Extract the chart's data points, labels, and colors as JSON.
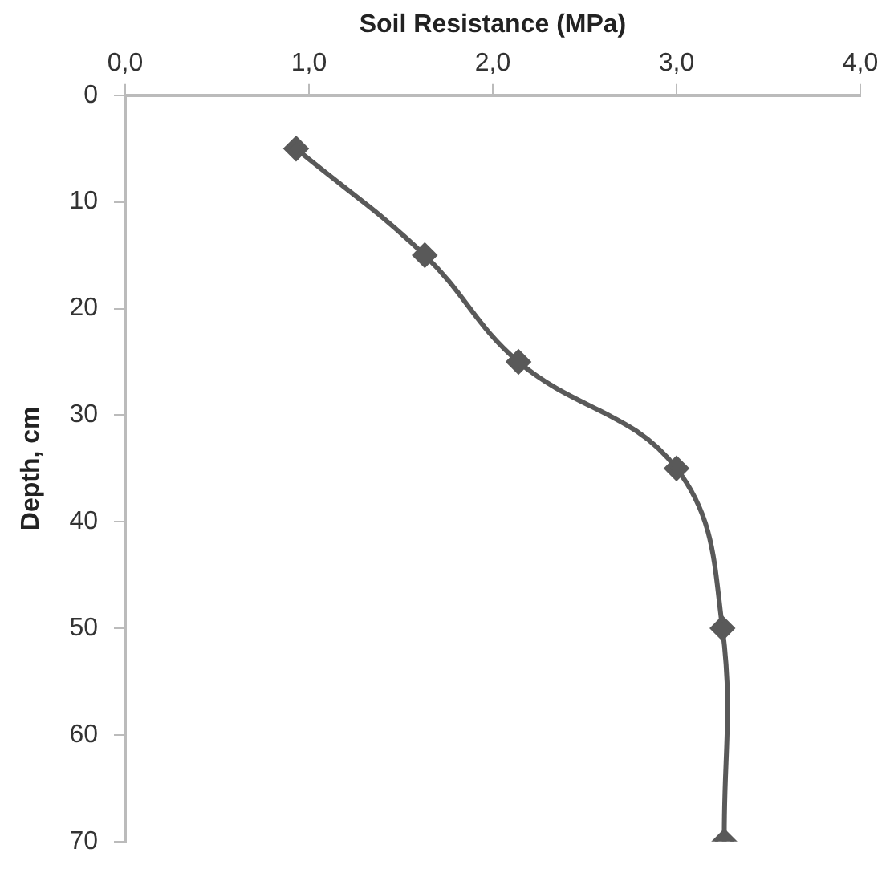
{
  "chart_data": {
    "type": "line",
    "xlabel": "Soil Resistance (MPa)",
    "ylabel": "Depth, cm",
    "x": [
      0.93,
      1.63,
      2.14,
      3.0,
      3.25,
      3.26
    ],
    "series": [
      {
        "color": "#595959",
        "values": [
          5,
          15,
          25,
          35,
          50,
          70
        ]
      }
    ],
    "xlim": [
      0,
      4
    ],
    "xticks": [
      {
        "value": 0,
        "label": "0,0"
      },
      {
        "value": 1,
        "label": "1,0"
      },
      {
        "value": 2,
        "label": "2,0"
      },
      {
        "value": 3,
        "label": "3,0"
      },
      {
        "value": 4,
        "label": "4,0"
      }
    ],
    "ylim": [
      70,
      0
    ],
    "yticks": [
      0,
      10,
      20,
      30,
      40,
      50,
      60,
      70
    ],
    "grid": false,
    "legend": false,
    "marker": "diamond",
    "line_style": "solid"
  }
}
